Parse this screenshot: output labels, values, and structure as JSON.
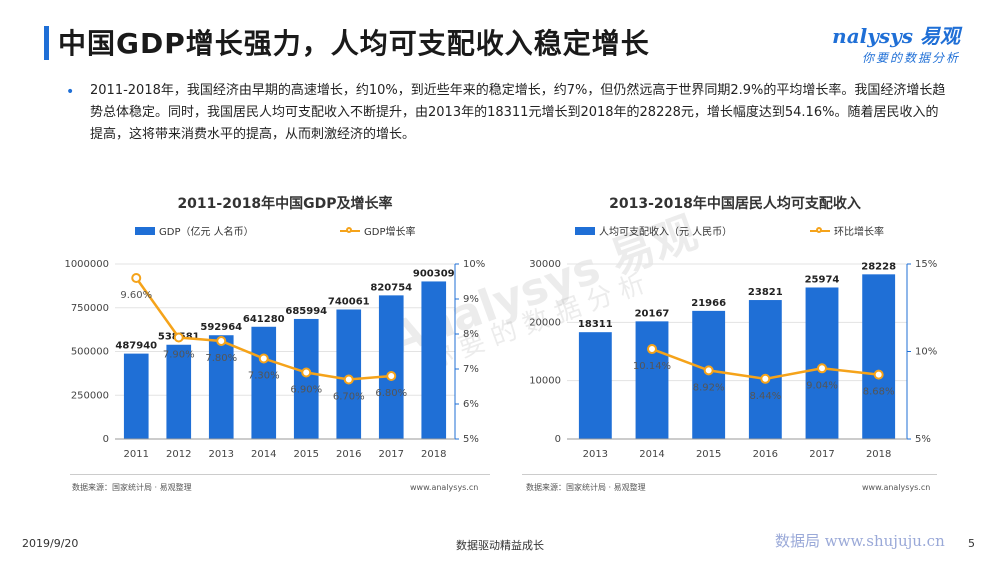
{
  "header": {
    "title": "中国GDP增长强力，人均可支配收入稳定增长",
    "logo_main": "nalysys 易观",
    "logo_sub": "你要的数据分析"
  },
  "intro": {
    "bullet": "•",
    "text": "2011-2018年，我国经济由早期的高速增长，约10%，到近些年来的稳定增长，约7%，但仍然远高于世界同期2.9%的平均增长率。我国经济增长趋势总体稳定。同时，我国居民人均可支配收入不断提升，由2013年的18311元增长到2018年的28228元，增长幅度达到54.16%。随着居民收入的提高，这将带来消费水平的提高，从而刺激经济的增长。"
  },
  "watermark": {
    "main": "Analysys 易观",
    "sub": "你要的数据分析"
  },
  "charts": {
    "gdp": {
      "source": "数据来源：国家统计局 · 易观整理",
      "site": "www.analysys.cn"
    },
    "income": {
      "source": "数据来源：国家统计局 · 易观整理",
      "site": "www.analysys.cn"
    }
  },
  "chart_data": [
    {
      "type": "bar",
      "title": "2011-2018年中国GDP及增长率",
      "categories": [
        "2011",
        "2012",
        "2013",
        "2014",
        "2015",
        "2016",
        "2017",
        "2018"
      ],
      "series": [
        {
          "name": "GDP（亿元 人名币）",
          "type": "bar",
          "axis": "left",
          "values": [
            487940,
            538581,
            592964,
            641280,
            685994,
            740061,
            820754,
            900309
          ]
        },
        {
          "name": "GDP增长率",
          "type": "line",
          "axis": "right",
          "values": [
            9.6,
            7.9,
            7.8,
            7.3,
            6.9,
            6.7,
            6.8,
            null
          ],
          "labels": [
            "9.60%",
            "7.90%",
            "7.80%",
            "7.30%",
            "6.90%",
            "6.70%",
            "6.80%",
            ""
          ]
        }
      ],
      "y_left": {
        "min": 0,
        "max": 1000000,
        "ticks": [
          "0",
          "250000",
          "500000",
          "750000",
          "1000000"
        ]
      },
      "y_right": {
        "min": 5,
        "max": 10,
        "ticks": [
          "5%",
          "6%",
          "7%",
          "8%",
          "9%",
          "10%"
        ]
      },
      "colors": {
        "bar": "#1f6fd6",
        "line": "#f5a31a"
      },
      "legend": "top"
    },
    {
      "type": "bar",
      "title": "2013-2018年中国居民人均可支配收入",
      "categories": [
        "2013",
        "2014",
        "2015",
        "2016",
        "2017",
        "2018"
      ],
      "series": [
        {
          "name": "人均可支配收入（元 人民币）",
          "type": "bar",
          "axis": "left",
          "values": [
            18311,
            20167,
            21966,
            23821,
            25974,
            28228
          ]
        },
        {
          "name": "环比增长率",
          "type": "line",
          "axis": "right",
          "values": [
            null,
            10.14,
            8.92,
            8.44,
            9.04,
            8.68
          ],
          "labels": [
            "",
            "10.14%",
            "8.92%",
            "8.44%",
            "9.04%",
            "8.68%"
          ]
        }
      ],
      "y_left": {
        "min": 0,
        "max": 30000,
        "ticks": [
          "0",
          "10000",
          "20000",
          "30000"
        ]
      },
      "y_right": {
        "min": 5,
        "max": 15,
        "ticks": [
          "5%",
          "10%",
          "15%"
        ]
      },
      "colors": {
        "bar": "#1f6fd6",
        "line": "#f5a31a"
      },
      "legend": "top"
    }
  ],
  "footer": {
    "date": "2019/9/20",
    "slogan": "数据驱动精益成长",
    "watermark": "数据局 www.shujuju.cn",
    "page": "5"
  }
}
